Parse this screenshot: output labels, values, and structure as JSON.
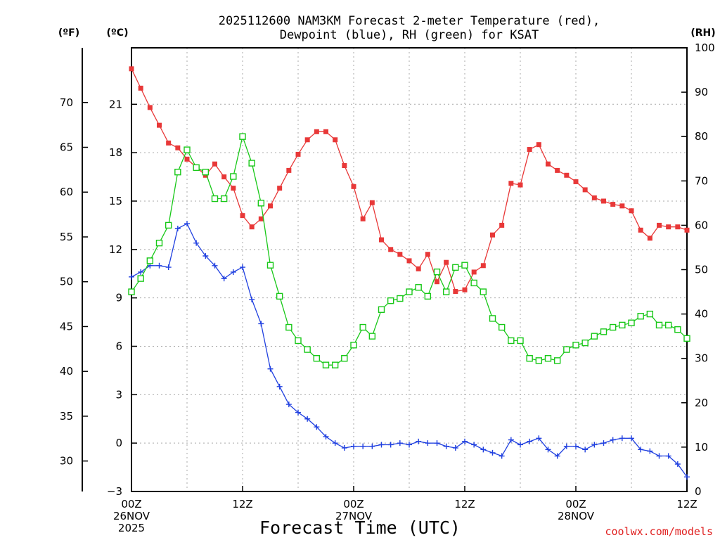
{
  "chart_data": {
    "type": "line",
    "title_line1": "2025112600 NAM3KM Forecast 2-meter Temperature (red),",
    "title_line2": "Dewpoint (blue), RH (green) for KSAT",
    "units": {
      "fahrenheit": "(ºF)",
      "celsius": "(ºC)",
      "rh": "(RH)"
    },
    "xlabel": "Forecast Time (UTC)",
    "credit": "coolwx.com/models",
    "x_range_hours": [
      0,
      60
    ],
    "x_ticks": [
      {
        "hour": 0,
        "lines": [
          "00Z",
          "26NOV",
          "2025"
        ]
      },
      {
        "hour": 12,
        "lines": [
          "12Z"
        ]
      },
      {
        "hour": 24,
        "lines": [
          "00Z",
          "27NOV"
        ]
      },
      {
        "hour": 36,
        "lines": [
          "12Z"
        ]
      },
      {
        "hour": 48,
        "lines": [
          "00Z",
          "28NOV"
        ]
      },
      {
        "hour": 60,
        "lines": [
          "12Z"
        ]
      }
    ],
    "y_celsius_range": [
      -3,
      24.5
    ],
    "y_celsius_ticks": [
      "21",
      "18",
      "15",
      "12",
      "9",
      "6",
      "3",
      "0",
      "−3"
    ],
    "y_fahrenheit_ticks": [
      "70",
      "65",
      "60",
      "55",
      "50",
      "45",
      "40",
      "35",
      "30"
    ],
    "y_rh_range": [
      0,
      100
    ],
    "y_rh_ticks": [
      "100",
      "90",
      "80",
      "70",
      "60",
      "50",
      "40",
      "30",
      "20",
      "10",
      "0"
    ],
    "series": [
      {
        "name": "Temperature",
        "unit": "C",
        "color": "#e83838",
        "marker": "filled-square",
        "x": [
          0,
          1,
          2,
          3,
          4,
          5,
          6,
          7,
          8,
          9,
          10,
          11,
          12,
          13,
          14,
          15,
          16,
          17,
          18,
          19,
          20,
          21,
          22,
          23,
          24,
          25,
          26,
          27,
          28,
          29,
          30,
          31,
          32,
          33,
          34,
          35,
          36,
          37,
          38,
          39,
          40,
          41,
          42,
          43,
          44,
          45,
          46,
          47,
          48,
          49,
          50,
          51,
          52,
          53,
          54,
          55,
          56,
          57,
          58,
          59,
          60
        ],
        "values": [
          23.2,
          22.0,
          20.8,
          19.7,
          18.6,
          18.3,
          17.6,
          17.1,
          16.6,
          17.3,
          16.5,
          15.8,
          14.1,
          13.4,
          13.9,
          14.7,
          15.8,
          16.9,
          17.9,
          18.8,
          19.3,
          19.3,
          18.8,
          17.2,
          15.9,
          13.9,
          14.9,
          12.6,
          12.0,
          11.7,
          11.3,
          10.8,
          11.7,
          10.0,
          11.2,
          9.4,
          9.5,
          10.6,
          11.0,
          12.9,
          13.5,
          16.1,
          16.0,
          18.2,
          18.5,
          17.3,
          16.9,
          16.6,
          16.2,
          15.7,
          15.2,
          15.0,
          14.8,
          14.7,
          14.4,
          13.2,
          12.7,
          13.5,
          13.4,
          13.4,
          13.2
        ]
      },
      {
        "name": "Dewpoint",
        "unit": "C",
        "color": "#2040e0",
        "marker": "plus",
        "x": [
          0,
          1,
          2,
          3,
          4,
          5,
          6,
          7,
          8,
          9,
          10,
          11,
          12,
          13,
          14,
          15,
          16,
          17,
          18,
          19,
          20,
          21,
          22,
          23,
          24,
          25,
          26,
          27,
          28,
          29,
          30,
          31,
          32,
          33,
          34,
          35,
          36,
          37,
          38,
          39,
          40,
          41,
          42,
          43,
          44,
          45,
          46,
          47,
          48,
          49,
          50,
          51,
          52,
          53,
          54,
          55,
          56,
          57,
          58,
          59,
          60
        ],
        "values": [
          10.3,
          10.6,
          11.0,
          11.0,
          10.9,
          13.3,
          13.6,
          12.4,
          11.6,
          11.0,
          10.2,
          10.6,
          10.9,
          8.9,
          7.4,
          4.6,
          3.5,
          2.4,
          1.9,
          1.5,
          1.0,
          0.4,
          0.0,
          -0.3,
          -0.2,
          -0.2,
          -0.2,
          -0.1,
          -0.1,
          0.0,
          -0.1,
          0.1,
          0.0,
          0.0,
          -0.2,
          -0.3,
          0.1,
          -0.1,
          -0.4,
          -0.6,
          -0.8,
          0.2,
          -0.1,
          0.1,
          0.3,
          -0.4,
          -0.8,
          -0.2,
          -0.2,
          -0.4,
          -0.1,
          0.0,
          0.2,
          0.3,
          0.3,
          -0.4,
          -0.5,
          -0.8,
          -0.8,
          -1.3,
          -2.1
        ]
      },
      {
        "name": "Relative Humidity",
        "unit": "%",
        "color": "#18c818",
        "marker": "open-square",
        "x": [
          0,
          1,
          2,
          3,
          4,
          5,
          6,
          7,
          8,
          9,
          10,
          11,
          12,
          13,
          14,
          15,
          16,
          17,
          18,
          19,
          20,
          21,
          22,
          23,
          24,
          25,
          26,
          27,
          28,
          29,
          30,
          31,
          32,
          33,
          34,
          35,
          36,
          37,
          38,
          39,
          40,
          41,
          42,
          43,
          44,
          45,
          46,
          47,
          48,
          49,
          50,
          51,
          52,
          53,
          54,
          55,
          56,
          57,
          58,
          59,
          60
        ],
        "values": [
          45,
          48,
          52,
          56,
          60,
          72,
          77,
          73,
          72,
          66,
          66,
          71,
          80,
          74,
          65,
          51,
          44,
          37,
          34,
          32,
          30,
          28.5,
          28.5,
          30,
          33,
          37,
          35,
          41,
          43,
          43.5,
          45,
          46,
          44,
          49.5,
          45,
          50.5,
          51,
          47,
          45,
          39,
          37,
          34,
          34,
          30,
          29.5,
          30,
          29.5,
          32,
          33,
          33.5,
          35,
          36,
          37,
          37.5,
          38,
          39.5,
          40,
          37.5,
          37.5,
          36.5,
          34.5
        ]
      }
    ]
  }
}
